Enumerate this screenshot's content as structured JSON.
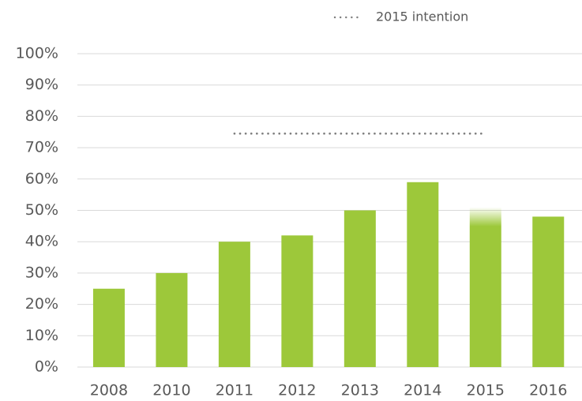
{
  "chart_data": {
    "type": "bar",
    "categories": [
      "2008",
      "2010",
      "2011",
      "2012",
      "2013",
      "2014",
      "2015",
      "2016"
    ],
    "values": [
      25,
      30,
      40,
      42,
      50,
      59,
      51,
      48
    ],
    "faded": [
      false,
      false,
      false,
      false,
      false,
      false,
      true,
      false
    ],
    "color": "#9dc83a",
    "series": [
      {
        "name": "2015 intention",
        "type": "line",
        "style": "dotted",
        "color": "#7f7f7f",
        "values": [
          null,
          null,
          74.5,
          74.5,
          74.5,
          74.5,
          74.5,
          null
        ]
      }
    ],
    "ylim": [
      0,
      100
    ],
    "yticks": [
      {
        "value": 0,
        "label": "0%"
      },
      {
        "value": 10,
        "label": "10%"
      },
      {
        "value": 20,
        "label": "20%"
      },
      {
        "value": 30,
        "label": "30%"
      },
      {
        "value": 40,
        "label": "40%"
      },
      {
        "value": 50,
        "label": "50%"
      },
      {
        "value": 60,
        "label": "60%"
      },
      {
        "value": 70,
        "label": "70%"
      },
      {
        "value": 80,
        "label": "80%"
      },
      {
        "value": 90,
        "label": "90%"
      },
      {
        "value": 100,
        "label": "100%"
      }
    ],
    "grid": true,
    "legend": "top-right"
  }
}
